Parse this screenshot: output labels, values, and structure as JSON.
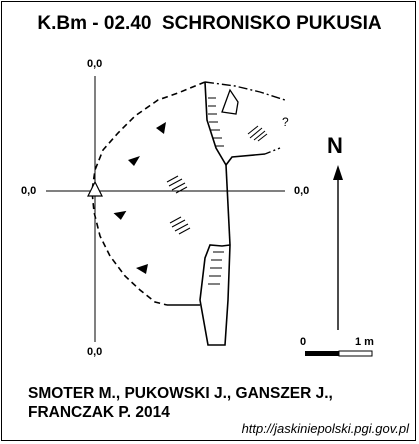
{
  "title": "K.Bm - 02.40  SCHRONISKO PUKUSIA",
  "axis_labels": {
    "top": "0,0",
    "bottom": "0,0",
    "left": "0,0",
    "right": "0,0"
  },
  "north_label": "N",
  "unknown_mark": "?",
  "scale": {
    "start": "0",
    "end": "1 m"
  },
  "authors": {
    "line1": "SMOTER M., PUKOWSKI J., GANSZER J.,",
    "line2": "FRANCZAK P.  2014"
  },
  "url": "http://jaskiniepolski.pgi.gov.pl",
  "colors": {
    "ink": "#000000",
    "background": "#ffffff"
  }
}
